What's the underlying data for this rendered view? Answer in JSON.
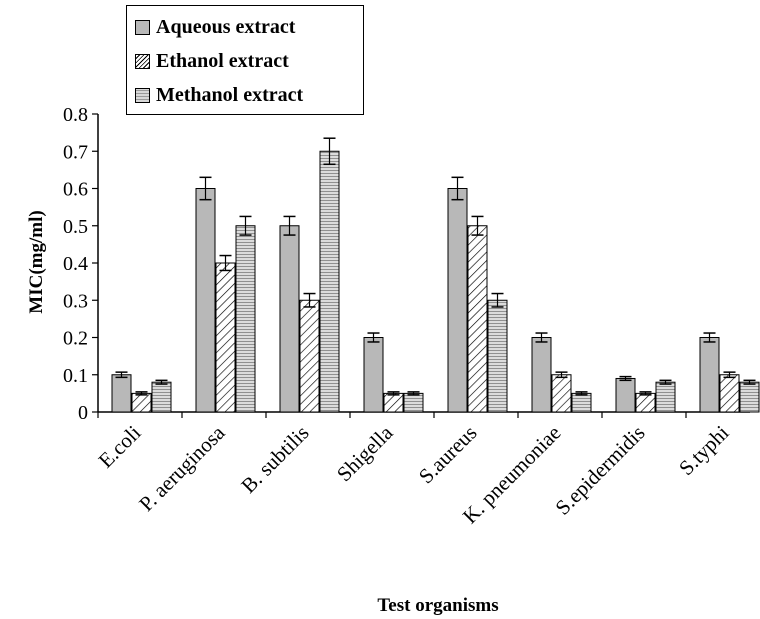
{
  "chart_data": {
    "type": "bar",
    "categories": [
      "E.coli",
      "P. aeruginosa",
      "B. subtilis",
      "Shigella",
      "S.aureus",
      "K. pneumoniae",
      "S.epidermidis",
      "S.typhi"
    ],
    "series": [
      {
        "name": "Aqueous extract",
        "values": [
          0.1,
          0.6,
          0.5,
          0.2,
          0.6,
          0.2,
          0.09,
          0.2
        ],
        "errors": [
          0.007,
          0.03,
          0.025,
          0.012,
          0.03,
          0.012,
          0.005,
          0.012
        ],
        "pattern": "solid-gray"
      },
      {
        "name": "Ethanol extract",
        "values": [
          0.05,
          0.4,
          0.3,
          0.05,
          0.5,
          0.1,
          0.05,
          0.1
        ],
        "errors": [
          0.004,
          0.02,
          0.018,
          0.004,
          0.025,
          0.007,
          0.004,
          0.007
        ],
        "pattern": "diagonal-hatch"
      },
      {
        "name": "Methanol extract",
        "values": [
          0.08,
          0.5,
          0.7,
          0.05,
          0.3,
          0.05,
          0.08,
          0.08
        ],
        "errors": [
          0.005,
          0.025,
          0.035,
          0.004,
          0.018,
          0.004,
          0.005,
          0.005
        ],
        "pattern": "horizontal-lines"
      }
    ],
    "xlabel": "Test organisms",
    "ylabel": "MIC(mg/ml)",
    "ylim": [
      0,
      0.8
    ],
    "yticks": [
      "0",
      "0.1",
      "0.2",
      "0.3",
      "0.4",
      "0.5",
      "0.6",
      "0.7",
      "0.8"
    ],
    "grid": false,
    "legend_position": "top-left"
  },
  "colors": {
    "aqueous": "#b8b8b8",
    "ethanol_hatch": "#000000",
    "methanol_line": "#9a9a9a",
    "axis": "#000000"
  }
}
